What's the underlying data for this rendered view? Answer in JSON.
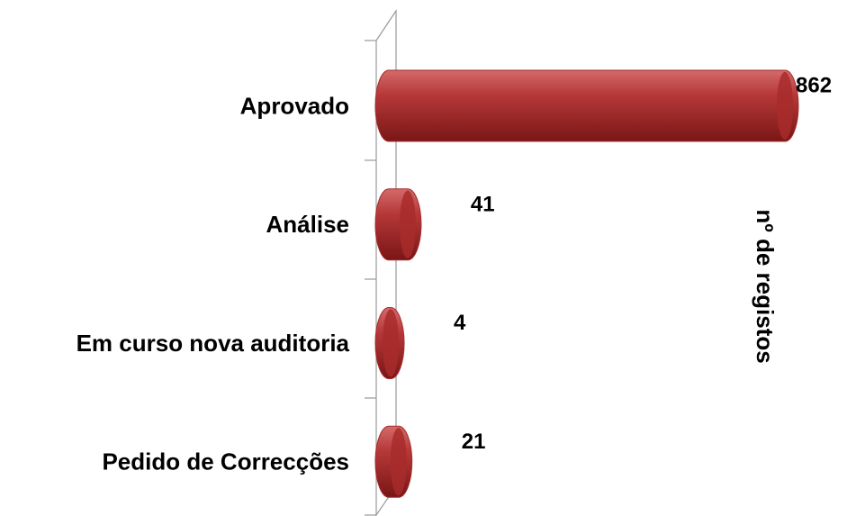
{
  "chart_data": {
    "type": "bar",
    "orientation": "horizontal",
    "categories": [
      "Aprovado",
      "Análise",
      "Em curso nova auditoria",
      "Pedido de Correcções"
    ],
    "series": [
      {
        "name": "nº de registos",
        "color": "#a82c2c",
        "values": [
          862,
          41,
          4,
          21
        ]
      }
    ]
  }
}
